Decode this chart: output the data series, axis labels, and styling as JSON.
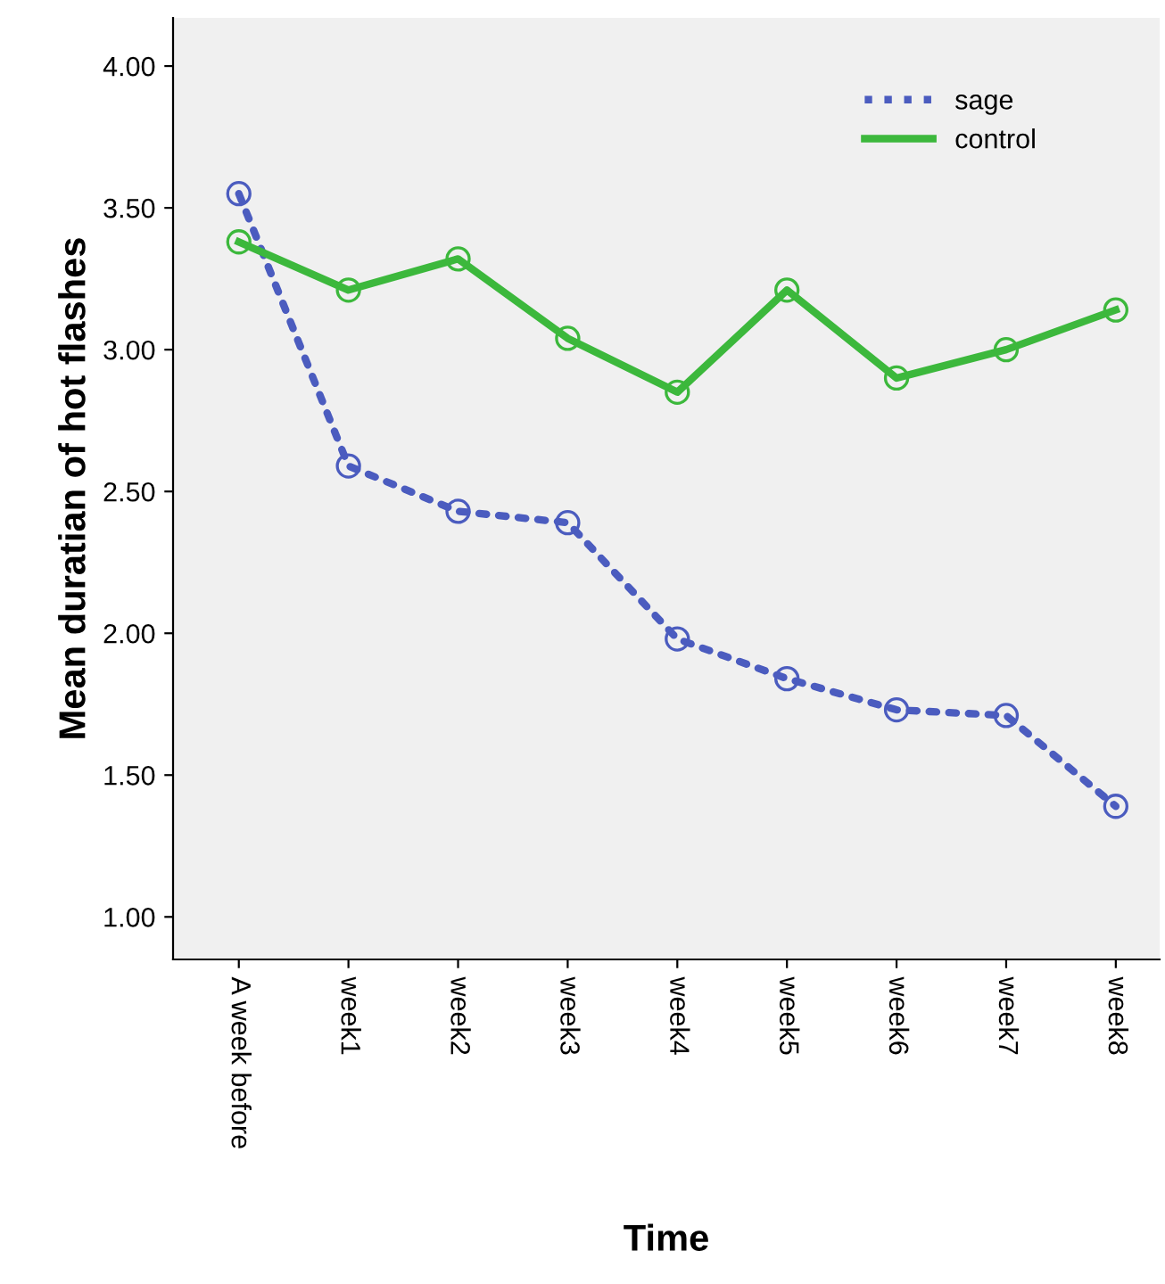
{
  "chart_data": {
    "type": "line",
    "xlabel": "Time",
    "ylabel": "Mean duratian of hot flashes",
    "categories": [
      "A week before",
      "week1",
      "week2",
      "week3",
      "week4",
      "week5",
      "week6",
      "week7",
      "week8"
    ],
    "series": [
      {
        "name": "sage",
        "color": "#4b5cbf",
        "line_style": "dotted",
        "values": [
          3.55,
          2.59,
          2.43,
          2.39,
          1.98,
          1.84,
          1.73,
          1.71,
          1.39
        ]
      },
      {
        "name": "control",
        "color": "#3cb83c",
        "line_style": "solid",
        "values": [
          3.38,
          3.21,
          3.32,
          3.04,
          2.85,
          3.21,
          2.9,
          3.0,
          3.14
        ]
      }
    ],
    "marker": "circle",
    "ylim": [
      0.85,
      4.17
    ],
    "yticks": [
      {
        "value": 1,
        "label": "1.00"
      },
      {
        "value": 1.5,
        "label": "1.50"
      },
      {
        "value": 2,
        "label": "2.00"
      },
      {
        "value": 2.5,
        "label": "2.50"
      },
      {
        "value": 3,
        "label": "3.00"
      },
      {
        "value": 3.5,
        "label": "3.50"
      },
      {
        "value": 4,
        "label": "4.00"
      }
    ],
    "grid": false,
    "legend": "top right"
  }
}
